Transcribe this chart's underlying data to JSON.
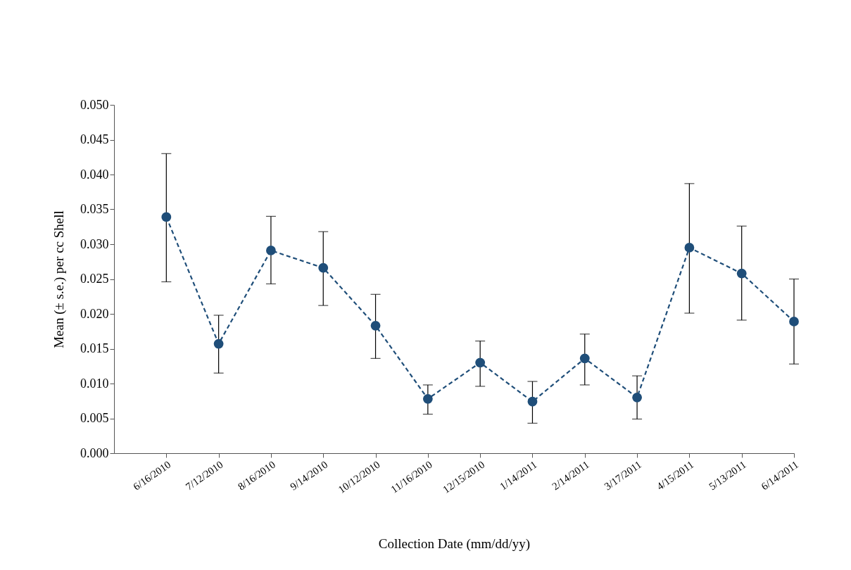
{
  "chart_data": {
    "type": "line",
    "xlabel": "Collection Date (mm/dd/yy)",
    "ylabel": "Mean (± s.e.) per cc Shell",
    "categories": [
      "6/16/2010",
      "7/12/2010",
      "8/16/2010",
      "9/14/2010",
      "10/12/2010",
      "11/16/2010",
      "12/15/2010",
      "1/14/2011",
      "2/14/2011",
      "3/17/2011",
      "4/15/2011",
      "5/13/2011",
      "6/14/2011"
    ],
    "series": [
      {
        "color": "#1f4e79",
        "values": [
          0.0339,
          0.0157,
          0.0291,
          0.0266,
          0.0183,
          0.0078,
          0.013,
          0.0074,
          0.0136,
          0.008,
          0.0295,
          0.0258,
          0.0189
        ],
        "errors": [
          [
            0.0246,
            0.043
          ],
          [
            0.0115,
            0.0198
          ],
          [
            0.0243,
            0.034
          ],
          [
            0.0212,
            0.0318
          ],
          [
            0.0136,
            0.0228
          ],
          [
            0.0056,
            0.0098
          ],
          [
            0.0096,
            0.0161
          ],
          [
            0.0043,
            0.0103
          ],
          [
            0.0098,
            0.0171
          ],
          [
            0.0049,
            0.0111
          ],
          [
            0.0201,
            0.0387
          ],
          [
            0.0191,
            0.0326
          ],
          [
            0.0128,
            0.025
          ]
        ]
      }
    ],
    "ylim": [
      0,
      0.05
    ],
    "yticks": [
      {
        "value": 0,
        "label": "0.000"
      },
      {
        "value": 0.005,
        "label": "0.005"
      },
      {
        "value": 0.01,
        "label": "0.010"
      },
      {
        "value": 0.015,
        "label": "0.015"
      },
      {
        "value": 0.02,
        "label": "0.020"
      },
      {
        "value": 0.025,
        "label": "0.025"
      },
      {
        "value": 0.03,
        "label": "0.030"
      },
      {
        "value": 0.035,
        "label": "0.035"
      },
      {
        "value": 0.04,
        "label": "0.040"
      },
      {
        "value": 0.045,
        "label": "0.045"
      },
      {
        "value": 0.05,
        "label": "0.050"
      }
    ],
    "marker": "circle",
    "line_style": "dashed",
    "grid": false
  }
}
